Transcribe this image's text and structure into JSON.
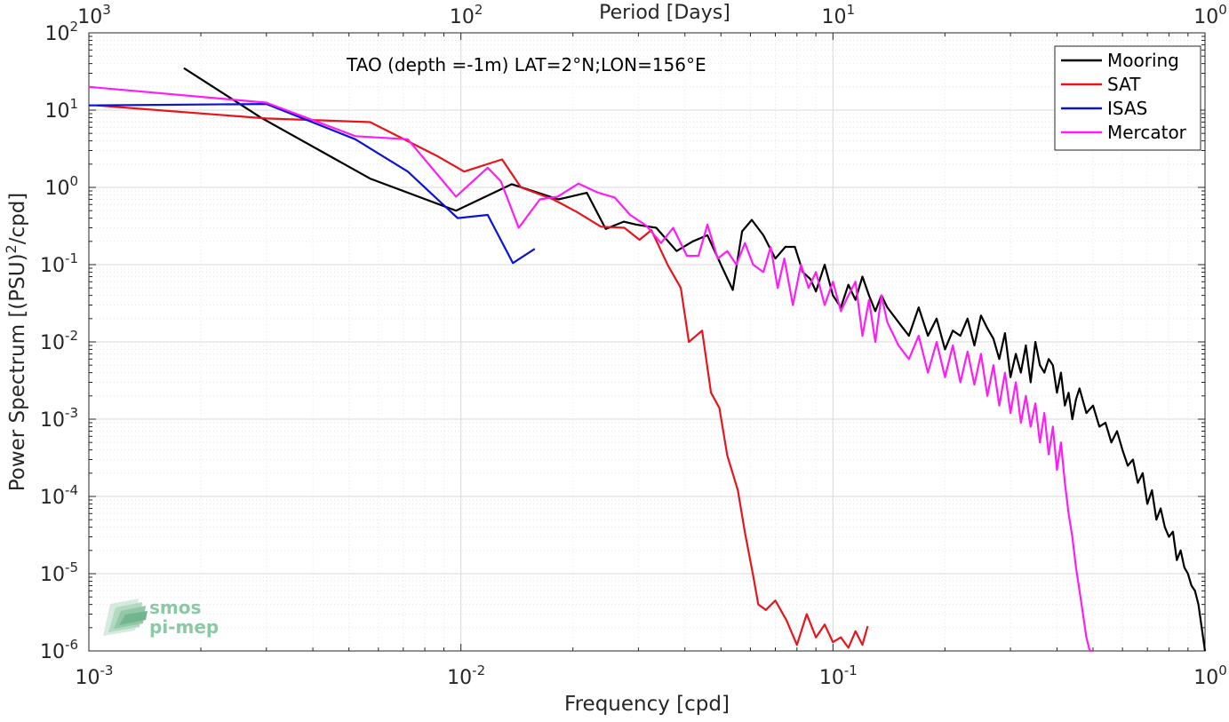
{
  "chart_data": {
    "type": "line",
    "scale": {
      "x": "log",
      "y": "log"
    },
    "xlim": [
      0.001,
      1
    ],
    "ylim": [
      1e-06,
      100
    ],
    "grid": true,
    "xlabel": "Frequency [cpd]",
    "ylabel": "Power Spectrum [(PSU)²/cpd]",
    "top_axis_label": "Period [Days]",
    "annotation": "TAO (depth =-1m) LAT=2°N;LON=156°E",
    "legend_position": "top-right",
    "x_ticks": [
      {
        "base": "10",
        "exp": "-3"
      },
      {
        "base": "10",
        "exp": "-2"
      },
      {
        "base": "10",
        "exp": "-1"
      },
      {
        "base": "10",
        "exp": "0"
      }
    ],
    "y_ticks": [
      {
        "base": "10",
        "exp": "-6"
      },
      {
        "base": "10",
        "exp": "-5"
      },
      {
        "base": "10",
        "exp": "-4"
      },
      {
        "base": "10",
        "exp": "-3"
      },
      {
        "base": "10",
        "exp": "-2"
      },
      {
        "base": "10",
        "exp": "-1"
      },
      {
        "base": "10",
        "exp": "0"
      },
      {
        "base": "10",
        "exp": "1"
      },
      {
        "base": "10",
        "exp": "2"
      }
    ],
    "top_ticks": [
      {
        "base": "10",
        "exp": "3"
      },
      {
        "base": "10",
        "exp": "2"
      },
      {
        "base": "10",
        "exp": "1"
      },
      {
        "base": "10",
        "exp": "0"
      }
    ],
    "series": [
      {
        "name": "Mooring",
        "color": "#000000",
        "x": [
          0.0018,
          0.0029,
          0.0057,
          0.0097,
          0.0137,
          0.0183,
          0.0218,
          0.0245,
          0.0274,
          0.0296,
          0.0335,
          0.038,
          0.042,
          0.046,
          0.0505,
          0.0538,
          0.057,
          0.0605,
          0.065,
          0.07,
          0.0745,
          0.079,
          0.083,
          0.087,
          0.09,
          0.095,
          0.1,
          0.105,
          0.11,
          0.115,
          0.12,
          0.125,
          0.13,
          0.135,
          0.14,
          0.15,
          0.16,
          0.17,
          0.18,
          0.19,
          0.2,
          0.21,
          0.22,
          0.23,
          0.24,
          0.25,
          0.26,
          0.27,
          0.28,
          0.29,
          0.3,
          0.31,
          0.32,
          0.33,
          0.34,
          0.35,
          0.36,
          0.37,
          0.38,
          0.39,
          0.4,
          0.41,
          0.42,
          0.43,
          0.44,
          0.45,
          0.46,
          0.48,
          0.5,
          0.52,
          0.54,
          0.56,
          0.58,
          0.6,
          0.62,
          0.64,
          0.66,
          0.68,
          0.7,
          0.72,
          0.74,
          0.76,
          0.78,
          0.8,
          0.82,
          0.84,
          0.86,
          0.88,
          0.9,
          0.92,
          0.94,
          0.96,
          0.98,
          1.0
        ],
        "y": [
          35,
          8,
          1.3,
          0.5,
          1.1,
          0.7,
          0.85,
          0.29,
          0.36,
          0.33,
          0.3,
          0.15,
          0.2,
          0.24,
          0.09,
          0.047,
          0.27,
          0.38,
          0.24,
          0.12,
          0.17,
          0.17,
          0.08,
          0.065,
          0.045,
          0.1,
          0.04,
          0.028,
          0.055,
          0.035,
          0.07,
          0.04,
          0.025,
          0.04,
          0.028,
          0.018,
          0.012,
          0.028,
          0.012,
          0.02,
          0.008,
          0.014,
          0.012,
          0.02,
          0.009,
          0.022,
          0.015,
          0.011,
          0.006,
          0.013,
          0.0035,
          0.007,
          0.004,
          0.009,
          0.003,
          0.01,
          0.005,
          0.004,
          0.006,
          0.005,
          0.0022,
          0.004,
          0.0015,
          0.0022,
          0.001,
          0.0018,
          0.0025,
          0.0012,
          0.0015,
          0.0008,
          0.0009,
          0.0005,
          0.0007,
          0.0004,
          0.00025,
          0.0003,
          0.00015,
          0.0002,
          8e-05,
          0.00012,
          5e-05,
          7e-05,
          4e-05,
          3e-05,
          3.5e-05,
          1.5e-05,
          2e-05,
          1.2e-05,
          1e-05,
          7e-06,
          6e-06,
          4e-06,
          2e-06,
          1e-06
        ]
      },
      {
        "name": "SAT",
        "color": "#e8141c",
        "x": [
          0.00105,
          0.003,
          0.0057,
          0.0087,
          0.0102,
          0.0129,
          0.0145,
          0.0177,
          0.0205,
          0.0238,
          0.0275,
          0.0302,
          0.0325,
          0.036,
          0.039,
          0.041,
          0.0445,
          0.047,
          0.0495,
          0.052,
          0.0555,
          0.058,
          0.061,
          0.063,
          0.066,
          0.07,
          0.075,
          0.08,
          0.085,
          0.09,
          0.095,
          0.1,
          0.105,
          0.11,
          0.115,
          0.12,
          0.124
        ],
        "y": [
          11.5,
          7.8,
          7,
          2.5,
          1.6,
          2.3,
          1,
          0.7,
          0.48,
          0.31,
          0.3,
          0.21,
          0.28,
          0.098,
          0.05,
          0.01,
          0.014,
          0.0022,
          0.0014,
          0.00034,
          0.00012,
          3.4e-05,
          9.5e-06,
          4e-06,
          3.4e-06,
          4.5e-06,
          2.5e-06,
          1.2e-06,
          3e-06,
          1.5e-06,
          2.2e-06,
          1.3e-06,
          1.5e-06,
          1.1e-06,
          1.8e-06,
          1.2e-06,
          2.1e-06
        ]
      },
      {
        "name": "ISAS",
        "color": "#0a14d6",
        "x": [
          0.001,
          0.003,
          0.0052,
          0.0072,
          0.0098,
          0.0118,
          0.0138,
          0.0158
        ],
        "y": [
          11.5,
          12,
          4.2,
          1.6,
          0.4,
          0.44,
          0.105,
          0.16
        ]
      },
      {
        "name": "Mercator",
        "color": "#ff1cf7",
        "x": [
          0.001,
          0.003,
          0.0052,
          0.0072,
          0.0097,
          0.0118,
          0.0128,
          0.0143,
          0.0163,
          0.0182,
          0.0207,
          0.0233,
          0.0259,
          0.0285,
          0.0315,
          0.0345,
          0.0372,
          0.0405,
          0.0435,
          0.046,
          0.049,
          0.052,
          0.055,
          0.058,
          0.061,
          0.065,
          0.068,
          0.071,
          0.074,
          0.078,
          0.082,
          0.086,
          0.09,
          0.095,
          0.1,
          0.105,
          0.11,
          0.115,
          0.12,
          0.125,
          0.13,
          0.135,
          0.14,
          0.15,
          0.16,
          0.17,
          0.18,
          0.19,
          0.2,
          0.21,
          0.22,
          0.23,
          0.24,
          0.25,
          0.26,
          0.27,
          0.28,
          0.29,
          0.3,
          0.31,
          0.32,
          0.33,
          0.34,
          0.35,
          0.36,
          0.37,
          0.38,
          0.39,
          0.4,
          0.41,
          0.42,
          0.43,
          0.44,
          0.45,
          0.46,
          0.47,
          0.48,
          0.49,
          0.5
        ],
        "y": [
          20,
          12.5,
          4.6,
          4.2,
          0.76,
          1.8,
          1.2,
          0.3,
          0.7,
          0.76,
          1.12,
          0.86,
          0.74,
          0.44,
          0.32,
          0.19,
          0.3,
          0.13,
          0.13,
          0.33,
          0.12,
          0.15,
          0.1,
          0.19,
          0.1,
          0.08,
          0.17,
          0.05,
          0.12,
          0.03,
          0.1,
          0.05,
          0.08,
          0.03,
          0.06,
          0.025,
          0.04,
          0.06,
          0.012,
          0.035,
          0.01,
          0.04,
          0.018,
          0.009,
          0.006,
          0.012,
          0.004,
          0.01,
          0.0035,
          0.009,
          0.003,
          0.0075,
          0.0028,
          0.007,
          0.002,
          0.005,
          0.0015,
          0.004,
          0.0012,
          0.003,
          0.0009,
          0.002,
          0.0008,
          0.0016,
          0.0005,
          0.0012,
          0.00035,
          0.0008,
          0.00022,
          0.0005,
          0.00015,
          6e-05,
          3e-05,
          1.2e-05,
          6e-06,
          3e-06,
          1.5e-06,
          1e-06,
          1e-06
        ]
      }
    ]
  },
  "watermark": {
    "line1": "smos",
    "line2": "pi-mep"
  }
}
